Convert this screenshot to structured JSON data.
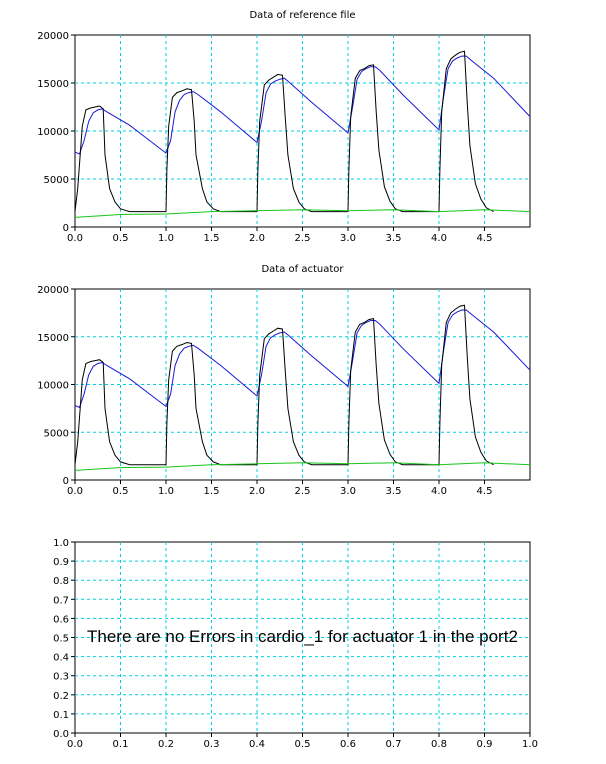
{
  "colors": {
    "grid": "#00d0e0",
    "series_blue": "#1a1ad6",
    "series_black": "#000000",
    "series_green": "#19c419"
  },
  "message": "There are no Errors in cardio_1 for actuator 1 in the port2",
  "chart_data": [
    {
      "type": "line",
      "title": "Data of reference file",
      "xlabel": "",
      "ylabel": "",
      "xlim": [
        0,
        5
      ],
      "ylim": [
        0,
        20000
      ],
      "xticks": [
        0,
        0.5,
        1,
        1.5,
        2,
        2.5,
        3,
        3.5,
        4,
        4.5
      ],
      "xtick_labels": [
        "0.0",
        "0.5",
        "1.0",
        "1.5",
        "2.0",
        "2.5",
        "3.0",
        "3.5",
        "4.0",
        "4.5"
      ],
      "yticks": [
        0,
        5000,
        10000,
        15000,
        20000
      ],
      "ytick_labels": [
        "0",
        "5000",
        "10000",
        "15000",
        "20000"
      ],
      "grid": true,
      "series": [
        {
          "color": "#1a1ad6",
          "x": [
            0,
            0.05,
            0.1,
            0.15,
            0.2,
            0.25,
            0.3,
            0.35,
            0.6,
            1.0,
            1.05,
            1.1,
            1.15,
            1.2,
            1.25,
            1.3,
            1.35,
            1.6,
            2.0,
            2.05,
            2.1,
            2.15,
            2.2,
            2.25,
            2.3,
            2.35,
            2.6,
            3.0,
            3.05,
            3.1,
            3.15,
            3.2,
            3.25,
            3.3,
            3.35,
            3.6,
            4.0,
            4.05,
            4.1,
            4.15,
            4.2,
            4.25,
            4.3,
            4.35,
            4.6,
            5.0
          ],
          "y": [
            7800,
            7600,
            9000,
            11000,
            11900,
            12200,
            12300,
            12000,
            10600,
            7700,
            9000,
            12000,
            13200,
            13800,
            14000,
            14100,
            13800,
            12000,
            8800,
            11000,
            14000,
            14900,
            15200,
            15400,
            15500,
            15100,
            13000,
            9800,
            12500,
            15400,
            16200,
            16500,
            16700,
            16700,
            16300,
            13800,
            10100,
            13500,
            16500,
            17300,
            17600,
            17800,
            17800,
            17400,
            15500,
            11500
          ]
        },
        {
          "color": "#000000",
          "x": [
            0,
            0.03,
            0.08,
            0.12,
            0.17,
            0.22,
            0.27,
            0.31,
            0.33,
            0.38,
            0.44,
            0.5,
            0.6,
            0.7,
            1.0,
            1.01,
            1.03,
            1.07,
            1.12,
            1.18,
            1.23,
            1.28,
            1.31,
            1.33,
            1.4,
            1.45,
            1.52,
            1.6,
            2.0,
            2.01,
            2.03,
            2.08,
            2.13,
            2.18,
            2.23,
            2.28,
            2.31,
            2.34,
            2.4,
            2.46,
            2.52,
            2.6,
            2.72,
            3.0,
            3.01,
            3.03,
            3.08,
            3.13,
            3.18,
            3.23,
            3.28,
            3.31,
            3.34,
            3.4,
            3.46,
            3.52,
            3.6,
            3.72,
            4.0,
            4.01,
            4.03,
            4.08,
            4.13,
            4.18,
            4.23,
            4.28,
            4.31,
            4.34,
            4.4,
            4.46,
            4.52,
            4.6
          ],
          "y": [
            1600,
            4000,
            10500,
            12200,
            12400,
            12500,
            12600,
            12300,
            7500,
            4000,
            2600,
            1900,
            1600,
            1600,
            1600,
            6000,
            10500,
            13500,
            14000,
            14200,
            14400,
            14300,
            11000,
            7500,
            4000,
            2600,
            1900,
            1600,
            1600,
            6000,
            11000,
            14800,
            15300,
            15600,
            15900,
            15800,
            11500,
            7500,
            4000,
            2600,
            1900,
            1600,
            1600,
            1600,
            6000,
            11500,
            15500,
            16300,
            16500,
            16800,
            16900,
            12000,
            8000,
            4200,
            2700,
            1900,
            1600,
            1600,
            1600,
            6000,
            12000,
            16500,
            17500,
            17900,
            18200,
            18300,
            13000,
            8500,
            4500,
            2900,
            2000,
            1600
          ]
        },
        {
          "color": "#19c419",
          "x": [
            0,
            0.5,
            1.0,
            1.5,
            2.0,
            2.5,
            3.0,
            3.5,
            4.0,
            4.5,
            5.0
          ],
          "y": [
            1000,
            1300,
            1350,
            1600,
            1700,
            1800,
            1700,
            1800,
            1600,
            1800,
            1600
          ]
        }
      ]
    },
    {
      "type": "line",
      "title": "Data of actuator",
      "xlabel": "",
      "ylabel": "",
      "xlim": [
        0,
        5
      ],
      "ylim": [
        0,
        20000
      ],
      "xticks": [
        0,
        0.5,
        1,
        1.5,
        2,
        2.5,
        3,
        3.5,
        4,
        4.5
      ],
      "xtick_labels": [
        "0.0",
        "0.5",
        "1.0",
        "1.5",
        "2.0",
        "2.5",
        "3.0",
        "3.5",
        "4.0",
        "4.5"
      ],
      "yticks": [
        0,
        5000,
        10000,
        15000,
        20000
      ],
      "ytick_labels": [
        "0",
        "5000",
        "10000",
        "15000",
        "20000"
      ],
      "grid": true,
      "series": [
        {
          "color": "#1a1ad6",
          "x": [
            0,
            0.05,
            0.1,
            0.15,
            0.2,
            0.25,
            0.3,
            0.35,
            0.6,
            1.0,
            1.05,
            1.1,
            1.15,
            1.2,
            1.25,
            1.3,
            1.35,
            1.6,
            2.0,
            2.05,
            2.1,
            2.15,
            2.2,
            2.25,
            2.3,
            2.35,
            2.6,
            3.0,
            3.05,
            3.1,
            3.15,
            3.2,
            3.25,
            3.3,
            3.35,
            3.6,
            4.0,
            4.05,
            4.1,
            4.15,
            4.2,
            4.25,
            4.3,
            4.35,
            4.6,
            5.0
          ],
          "y": [
            7800,
            7600,
            9000,
            11000,
            11900,
            12200,
            12300,
            12000,
            10600,
            7700,
            9000,
            12000,
            13200,
            13800,
            14000,
            14100,
            13800,
            12000,
            8800,
            11000,
            14000,
            14900,
            15200,
            15400,
            15500,
            15100,
            13000,
            9800,
            12500,
            15400,
            16200,
            16500,
            16700,
            16700,
            16300,
            13800,
            10100,
            13500,
            16500,
            17300,
            17600,
            17800,
            17800,
            17400,
            15500,
            11500
          ]
        },
        {
          "color": "#000000",
          "x": [
            0,
            0.03,
            0.08,
            0.12,
            0.17,
            0.22,
            0.27,
            0.31,
            0.33,
            0.38,
            0.44,
            0.5,
            0.6,
            0.7,
            1.0,
            1.01,
            1.03,
            1.07,
            1.12,
            1.18,
            1.23,
            1.28,
            1.31,
            1.33,
            1.4,
            1.45,
            1.52,
            1.6,
            2.0,
            2.01,
            2.03,
            2.08,
            2.13,
            2.18,
            2.23,
            2.28,
            2.31,
            2.34,
            2.4,
            2.46,
            2.52,
            2.6,
            2.72,
            3.0,
            3.01,
            3.03,
            3.08,
            3.13,
            3.18,
            3.23,
            3.28,
            3.31,
            3.34,
            3.4,
            3.46,
            3.52,
            3.6,
            3.72,
            4.0,
            4.01,
            4.03,
            4.08,
            4.13,
            4.18,
            4.23,
            4.28,
            4.31,
            4.34,
            4.4,
            4.46,
            4.52,
            4.6
          ],
          "y": [
            1600,
            4000,
            10500,
            12200,
            12400,
            12500,
            12600,
            12300,
            7500,
            4000,
            2600,
            1900,
            1600,
            1600,
            1600,
            6000,
            10500,
            13500,
            14000,
            14200,
            14400,
            14300,
            11000,
            7500,
            4000,
            2600,
            1900,
            1600,
            1600,
            6000,
            11000,
            14800,
            15300,
            15600,
            15900,
            15800,
            11500,
            7500,
            4000,
            2600,
            1900,
            1600,
            1600,
            1600,
            6000,
            11500,
            15500,
            16300,
            16500,
            16800,
            16900,
            12000,
            8000,
            4200,
            2700,
            1900,
            1600,
            1600,
            1600,
            6000,
            12000,
            16500,
            17500,
            17900,
            18200,
            18300,
            13000,
            8500,
            4500,
            2900,
            2000,
            1600
          ]
        },
        {
          "color": "#19c419",
          "x": [
            0,
            0.5,
            1.0,
            1.5,
            2.0,
            2.5,
            3.0,
            3.5,
            4.0,
            4.5,
            5.0
          ],
          "y": [
            1000,
            1300,
            1350,
            1600,
            1700,
            1800,
            1700,
            1800,
            1600,
            1800,
            1600
          ]
        }
      ]
    },
    {
      "type": "line",
      "title": "",
      "xlabel": "",
      "ylabel": "",
      "xlim": [
        0,
        1
      ],
      "ylim": [
        0,
        1
      ],
      "xticks": [
        0,
        0.1,
        0.2,
        0.3,
        0.4,
        0.5,
        0.6,
        0.7,
        0.8,
        0.9,
        1.0
      ],
      "xtick_labels": [
        "0.0",
        "0.1",
        "0.2",
        "0.3",
        "0.4",
        "0.5",
        "0.6",
        "0.7",
        "0.8",
        "0.9",
        "1.0"
      ],
      "yticks": [
        0,
        0.1,
        0.2,
        0.3,
        0.4,
        0.5,
        0.6,
        0.7,
        0.8,
        0.9,
        1.0
      ],
      "ytick_labels": [
        "0.0",
        "0.1",
        "0.2",
        "0.3",
        "0.4",
        "0.5",
        "0.6",
        "0.7",
        "0.8",
        "0.9",
        "1.0"
      ],
      "grid": true,
      "series": []
    }
  ]
}
